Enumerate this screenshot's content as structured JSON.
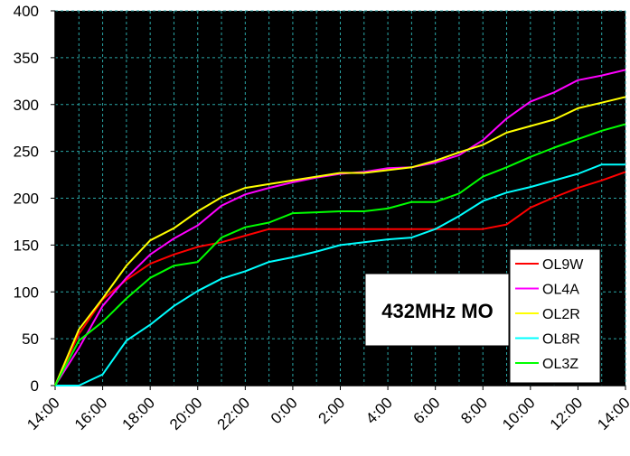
{
  "chart_data": {
    "type": "line",
    "title": "",
    "xlabel": "",
    "ylabel": "",
    "annotation": "432MHz MO",
    "ylim": [
      0,
      400
    ],
    "y_ticks": [
      "0",
      "50",
      "100",
      "150",
      "200",
      "250",
      "300",
      "350",
      "400"
    ],
    "categories": [
      "14:00",
      "15:00",
      "16:00",
      "17:00",
      "18:00",
      "19:00",
      "20:00",
      "21:00",
      "22:00",
      "23:00",
      "0:00",
      "1:00",
      "2:00",
      "3:00",
      "4:00",
      "5:00",
      "6:00",
      "7:00",
      "8:00",
      "9:00",
      "10:00",
      "11:00",
      "12:00",
      "13:00",
      "14:00"
    ],
    "x_tick_labels": [
      "14:00",
      "16:00",
      "18:00",
      "20:00",
      "22:00",
      "0:00",
      "2:00",
      "4:00",
      "6:00",
      "8:00",
      "10:00",
      "12:00",
      "14:00"
    ],
    "grid": true,
    "plot_background": "#000000",
    "grid_color": "#2aa6a6",
    "legend_position": "bottom-right",
    "series": [
      {
        "name": "OL9W",
        "color": "#ff0000",
        "values": [
          0,
          55,
          92,
          113,
          130,
          140,
          148,
          153,
          160,
          167,
          167,
          167,
          167,
          167,
          167,
          167,
          167,
          167,
          167,
          172,
          190,
          201,
          211,
          219,
          228
        ]
      },
      {
        "name": "OL4A",
        "color": "#ff00ff",
        "values": [
          0,
          40,
          85,
          115,
          140,
          157,
          171,
          192,
          204,
          211,
          217,
          222,
          226,
          228,
          232,
          233,
          238,
          246,
          262,
          285,
          303,
          313,
          326,
          331,
          337
        ]
      },
      {
        "name": "OL2R",
        "color": "#ffff00",
        "values": [
          0,
          60,
          93,
          128,
          155,
          168,
          186,
          201,
          211,
          215,
          219,
          223,
          227,
          227,
          230,
          233,
          240,
          249,
          257,
          270,
          277,
          284,
          296,
          302,
          308
        ]
      },
      {
        "name": "OL8R",
        "color": "#00ffff",
        "values": [
          0,
          0,
          12,
          48,
          65,
          85,
          101,
          114,
          122,
          132,
          137,
          143,
          150,
          153,
          156,
          158,
          167,
          181,
          197,
          206,
          212,
          219,
          226,
          236,
          236
        ]
      },
      {
        "name": "OL3Z",
        "color": "#00ff00",
        "values": [
          0,
          48,
          68,
          93,
          115,
          128,
          132,
          158,
          169,
          174,
          184,
          185,
          186,
          186,
          189,
          196,
          196,
          205,
          223,
          233,
          244,
          254,
          263,
          272,
          279
        ]
      }
    ]
  }
}
